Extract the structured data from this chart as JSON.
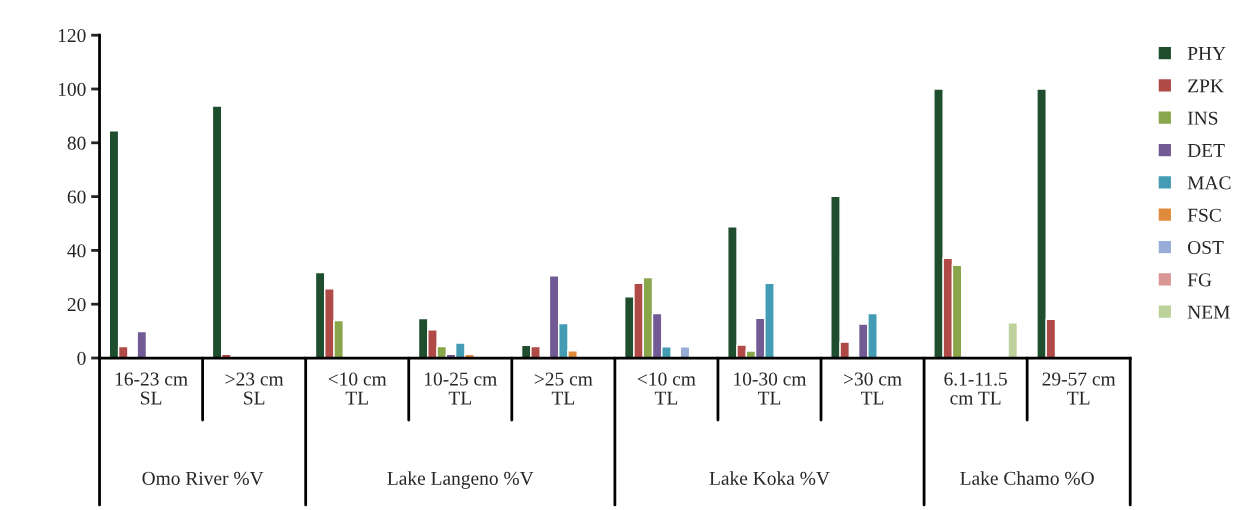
{
  "chart_data": {
    "type": "bar",
    "categories": [
      "16-23 cm\nSL",
      ">23 cm\nSL",
      "<10 cm\nTL",
      "10-25 cm\nTL",
      ">25 cm\nTL",
      "<10 cm\nTL",
      "10-30 cm\nTL",
      ">30 cm\nTL",
      "6.1-11.5\ncm TL",
      "29-57 cm\nTL"
    ],
    "series": [
      {
        "name": "PHY",
        "color": "#1f4e2e",
        "values": [
          84.5,
          93.7,
          31.8,
          14.7,
          4.7,
          22.8,
          48.8,
          60.1,
          100,
          100
        ]
      },
      {
        "name": "ZPK",
        "color": "#b04a47",
        "values": [
          4.3,
          1.4,
          25.7,
          10.5,
          4.3,
          27.8,
          4.8,
          5.9,
          37.1,
          14.4
        ]
      },
      {
        "name": "INS",
        "color": "#8aa64a",
        "values": [
          null,
          null,
          13.9,
          4.3,
          null,
          29.9,
          2.6,
          null,
          34.5,
          null
        ]
      },
      {
        "name": "DET",
        "color": "#725a95",
        "values": [
          9.8,
          null,
          null,
          1.4,
          30.6,
          16.5,
          14.8,
          12.6,
          null,
          null
        ]
      },
      {
        "name": "MAC",
        "color": "#439cb4",
        "values": [
          null,
          null,
          null,
          5.6,
          12.8,
          4.2,
          27.8,
          16.5,
          null,
          null
        ]
      },
      {
        "name": "FSC",
        "color": "#e08a3c",
        "values": [
          null,
          null,
          null,
          1.4,
          2.7,
          null,
          null,
          null,
          null,
          null
        ]
      },
      {
        "name": "OST",
        "color": "#97acd6",
        "values": [
          null,
          null,
          null,
          null,
          null,
          4.2,
          null,
          null,
          null,
          null
        ]
      },
      {
        "name": "FG",
        "color": "#d99694",
        "values": [
          null,
          null,
          null,
          null,
          null,
          null,
          null,
          null,
          null,
          null
        ]
      },
      {
        "name": "NEM",
        "color": "#bcd29a",
        "values": [
          null,
          null,
          null,
          null,
          null,
          null,
          null,
          null,
          13.1,
          null
        ]
      }
    ],
    "annotations": [
      "Omo River %V",
      "Lake Langeno %V",
      "Lake Koka %V",
      "Lake Chamo %O"
    ],
    "ylim": [
      0,
      120
    ],
    "yticks": [
      0,
      20,
      40,
      60,
      80,
      100,
      120
    ],
    "grid": false,
    "legend": "right"
  }
}
